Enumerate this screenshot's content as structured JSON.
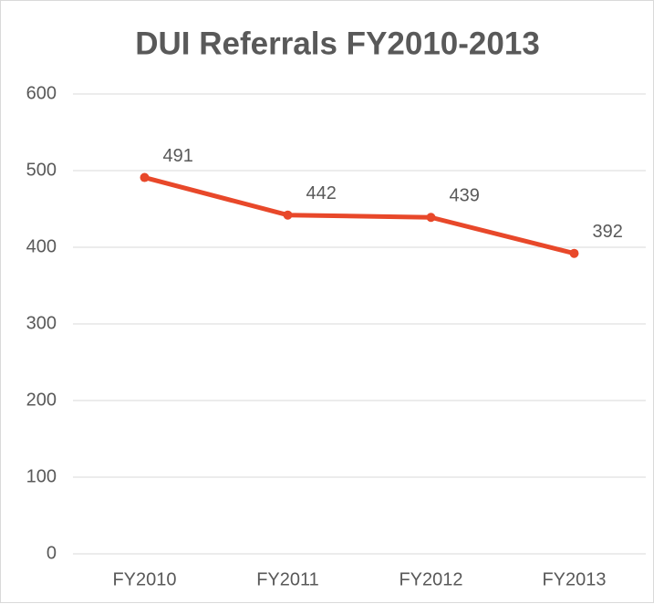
{
  "chart_data": {
    "type": "line",
    "title": "DUI Referrals FY2010-2013",
    "categories": [
      "FY2010",
      "FY2011",
      "FY2012",
      "FY2013"
    ],
    "values": [
      491,
      442,
      439,
      392
    ],
    "color": "#e8482a",
    "ylim": [
      0,
      600
    ],
    "yticks": [
      0,
      100,
      200,
      300,
      400,
      500,
      600
    ],
    "grid": true
  }
}
